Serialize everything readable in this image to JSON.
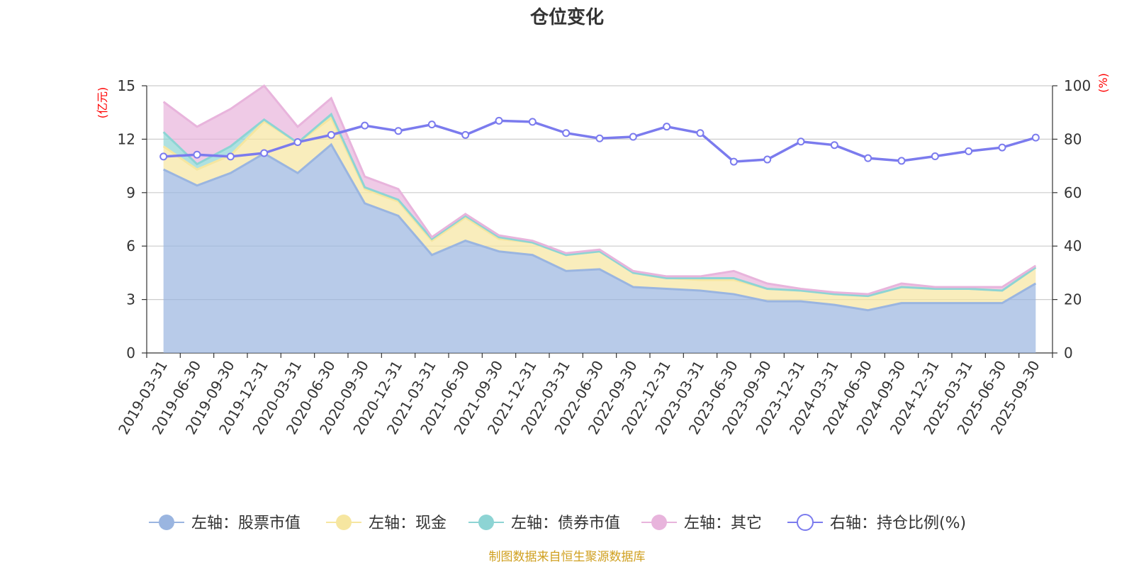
{
  "colors": {
    "stock": "#9ab5e0",
    "cash": "#f6e6a0",
    "bond": "#8dd4d4",
    "other": "#e8b4dc",
    "ratio": "#7b7bee",
    "axis_unit": "#ff0000",
    "source": "#d0a020"
  },
  "chart_data": {
    "type": "area",
    "title": "仓位变化",
    "left_axis_unit": "(亿元)",
    "right_axis_unit": "(%)",
    "left_ylim": [
      0,
      15
    ],
    "left_ticks": [
      "0",
      "3",
      "6",
      "9",
      "12",
      "15"
    ],
    "right_ylim": [
      0,
      100
    ],
    "right_ticks": [
      "0",
      "20",
      "40",
      "60",
      "80",
      "100"
    ],
    "categories": [
      "2019-03-31",
      "2019-06-30",
      "2019-09-30",
      "2019-12-31",
      "2020-03-31",
      "2020-06-30",
      "2020-09-30",
      "2020-12-31",
      "2021-03-31",
      "2021-06-30",
      "2021-09-30",
      "2021-12-31",
      "2022-03-31",
      "2022-06-30",
      "2022-09-30",
      "2022-12-31",
      "2023-03-31",
      "2023-06-30",
      "2023-09-30",
      "2023-12-31",
      "2024-03-31",
      "2024-06-30",
      "2024-09-30",
      "2024-12-31",
      "2025-03-31",
      "2025-06-30",
      "2025-09-30"
    ],
    "series": [
      {
        "key": "stock",
        "name": "左轴：股票市值",
        "axis": "left",
        "values": [
          10.3,
          9.4,
          10.1,
          11.2,
          10.1,
          11.7,
          8.4,
          7.7,
          5.5,
          6.3,
          5.7,
          5.5,
          4.6,
          4.7,
          3.7,
          3.6,
          3.5,
          3.3,
          2.9,
          2.9,
          2.7,
          2.4,
          2.8,
          2.8,
          2.8,
          2.8,
          3.9
        ]
      },
      {
        "key": "cash",
        "name": "左轴：现金",
        "axis": "left",
        "values": [
          1.3,
          0.9,
          1.0,
          1.8,
          1.7,
          1.5,
          0.8,
          0.8,
          0.8,
          1.3,
          0.7,
          0.7,
          0.9,
          1.0,
          0.8,
          0.6,
          0.6,
          0.8,
          0.7,
          0.6,
          0.6,
          0.8,
          0.9,
          0.8,
          0.8,
          0.7,
          0.9
        ]
      },
      {
        "key": "bond",
        "name": "左轴：债券市值",
        "axis": "left",
        "values": [
          0.8,
          0.3,
          0.5,
          0.1,
          0,
          0.2,
          0.1,
          0.1,
          0.1,
          0.1,
          0.1,
          0,
          0,
          0,
          0,
          0,
          0.1,
          0.1,
          0,
          0,
          0,
          0,
          0,
          0,
          0,
          0,
          0
        ]
      },
      {
        "key": "other",
        "name": "左轴：其它",
        "axis": "left",
        "values": [
          1.7,
          2.1,
          2.1,
          1.9,
          0.9,
          0.9,
          0.6,
          0.6,
          0.1,
          0.1,
          0.1,
          0.1,
          0.1,
          0.1,
          0.1,
          0.1,
          0.1,
          0.4,
          0.3,
          0.1,
          0.1,
          0.1,
          0.2,
          0.1,
          0.1,
          0.2,
          0.1
        ]
      },
      {
        "key": "ratio",
        "name": "右轴：持仓比例(%)",
        "axis": "right",
        "values": [
          73.5,
          74.2,
          73.5,
          74.8,
          78.9,
          81.6,
          85.1,
          83.1,
          85.5,
          81.6,
          86.9,
          86.5,
          82.3,
          80.3,
          80.9,
          84.7,
          82.3,
          71.6,
          72.4,
          79.1,
          77.8,
          72.9,
          71.9,
          73.6,
          75.5,
          76.9,
          80.6
        ]
      }
    ]
  },
  "source_text": "制图数据来自恒生聚源数据库"
}
